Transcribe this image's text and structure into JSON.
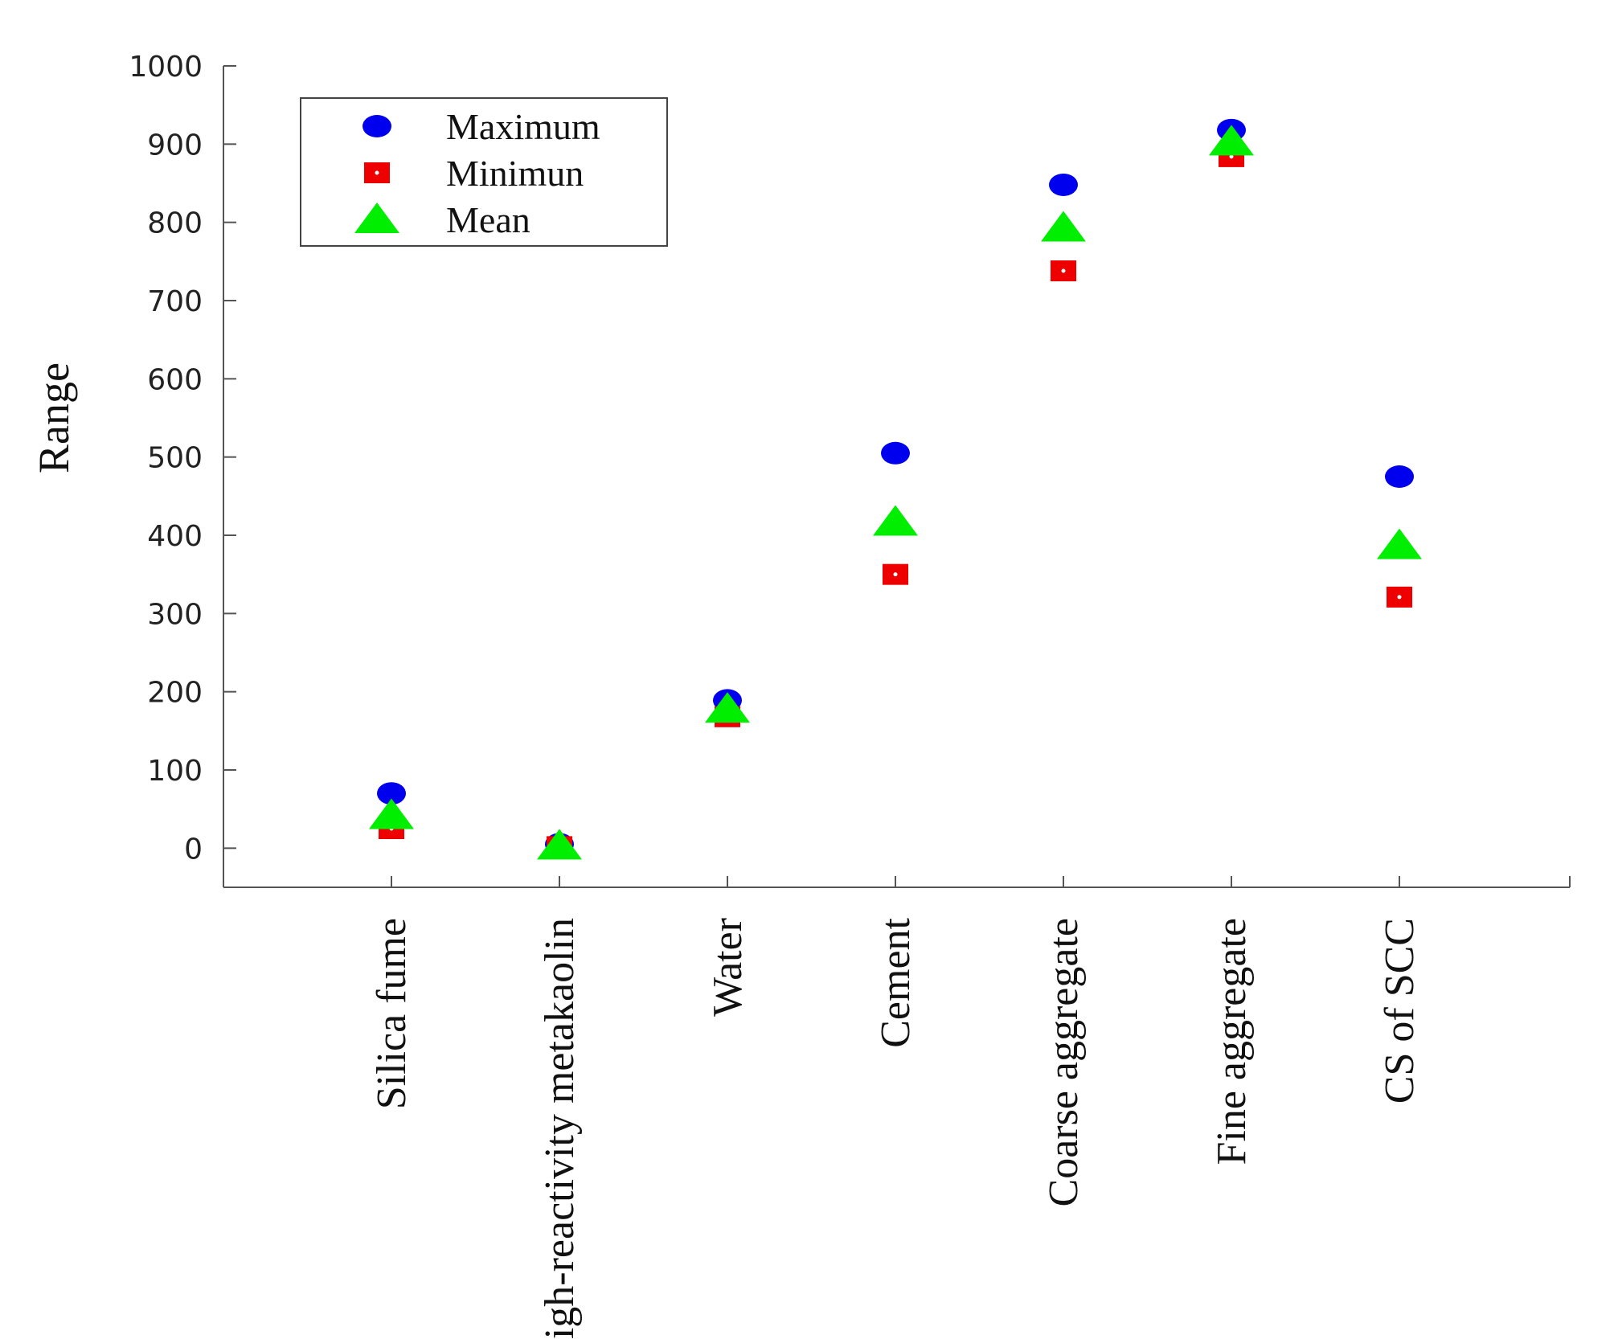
{
  "chart_data": {
    "type": "scatter",
    "title": "",
    "xlabel": "",
    "ylabel": "Range",
    "categories": [
      "Silica fume",
      "High-reactivity metakaolin",
      "Water",
      "Cement",
      "Coarse aggregate",
      "Fine aggregate",
      "CS of SCC"
    ],
    "ylim": [
      -50,
      1000
    ],
    "yticks": [
      0,
      100,
      200,
      300,
      400,
      500,
      600,
      700,
      800,
      900,
      1000
    ],
    "series": [
      {
        "name": "Maximum",
        "marker": "circle",
        "color": "#0000ee",
        "values": [
          70,
          5,
          189,
          505,
          848,
          918,
          475
        ]
      },
      {
        "name": "Minimun",
        "marker": "square",
        "color": "#ee0000",
        "values": [
          25,
          2,
          168,
          350,
          738,
          884,
          321
        ]
      },
      {
        "name": "Mean",
        "marker": "triangle",
        "color": "#00ee00",
        "values": [
          42,
          3,
          178,
          417,
          793,
          903,
          387
        ]
      }
    ],
    "legend": "top-left",
    "grid": false
  }
}
